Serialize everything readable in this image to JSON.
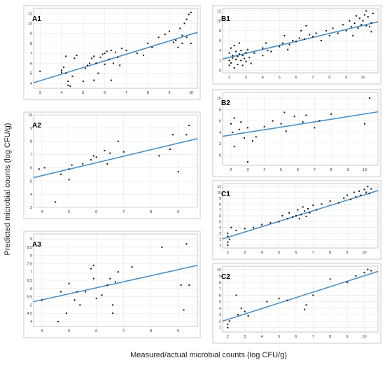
{
  "ylabel": "Predicted microbial counts (log CFU/g)",
  "xlabel": "Measured/actual microbial counts (log CFU/g)",
  "line_color": "#4a90c8",
  "point_color": "#111111",
  "frame_color": "#c8c8c8",
  "chart_data": [
    {
      "id": "A1",
      "type": "scatter",
      "title": "A1",
      "xlim": [
        2.7,
        10.3
      ],
      "ylim": [
        3.5,
        11.5
      ],
      "xticks": [
        3,
        4,
        5,
        6,
        7,
        8,
        9,
        10
      ],
      "yticks": [
        4,
        5,
        6,
        7,
        8,
        9,
        10,
        11
      ],
      "regression": [
        [
          2.7,
          4.05
        ],
        [
          10.3,
          9.1
        ]
      ],
      "points": [
        [
          3,
          5.2
        ],
        [
          4,
          5.1
        ],
        [
          4,
          5.3
        ],
        [
          4.1,
          5.6
        ],
        [
          4.2,
          6.7
        ],
        [
          4.2,
          5.0
        ],
        [
          4.3,
          4.2
        ],
        [
          4.3,
          3.8
        ],
        [
          4.4,
          3.7
        ],
        [
          4.5,
          4.7
        ],
        [
          4.6,
          6.5
        ],
        [
          4.7,
          6.8
        ],
        [
          5.0,
          4.2
        ],
        [
          5.1,
          5.5
        ],
        [
          5.2,
          5.8
        ],
        [
          5.3,
          6.0
        ],
        [
          5.4,
          6.5
        ],
        [
          5.5,
          6.7
        ],
        [
          5.5,
          4.3
        ],
        [
          5.6,
          6.0
        ],
        [
          5.7,
          5.0
        ],
        [
          5.8,
          6.6
        ],
        [
          5.9,
          6.9
        ],
        [
          6.0,
          7.0
        ],
        [
          6.0,
          5.9
        ],
        [
          6.1,
          7.2
        ],
        [
          6.2,
          6.4
        ],
        [
          6.3,
          7.3
        ],
        [
          6.3,
          4.3
        ],
        [
          6.4,
          6.0
        ],
        [
          6.5,
          7.1
        ],
        [
          6.6,
          6.6
        ],
        [
          6.7,
          5.8
        ],
        [
          6.8,
          7.5
        ],
        [
          7.0,
          7.3
        ],
        [
          7.5,
          7.0
        ],
        [
          7.8,
          6.8
        ],
        [
          8.0,
          8.0
        ],
        [
          8.2,
          7.6
        ],
        [
          8.5,
          8.6
        ],
        [
          8.8,
          8.9
        ],
        [
          9.0,
          9.2
        ],
        [
          9.3,
          8.3
        ],
        [
          9.4,
          7.6
        ],
        [
          9.5,
          9.5
        ],
        [
          9.6,
          8.0
        ],
        [
          9.7,
          10.0
        ],
        [
          9.8,
          10.4
        ],
        [
          9.8,
          8.6
        ],
        [
          9.9,
          10.9
        ],
        [
          10.0,
          11.1
        ],
        [
          10.0,
          8.0
        ],
        [
          9.6,
          8.8
        ],
        [
          9.2,
          8.1
        ]
      ]
    },
    {
      "id": "A2",
      "type": "scatter",
      "title": "A2",
      "xlim": [
        3.7,
        9.7
      ],
      "ylim": [
        3.0,
        10.0
      ],
      "xticks": [
        4,
        5,
        6,
        7,
        8,
        9
      ],
      "yticks": [
        3,
        4,
        5,
        6,
        7,
        8,
        9,
        10
      ],
      "regression": [
        [
          3.7,
          5.25
        ],
        [
          9.7,
          8.2
        ]
      ],
      "points": [
        [
          3.9,
          5.9
        ],
        [
          4.1,
          6.0
        ],
        [
          4.5,
          3.4
        ],
        [
          4.7,
          5.5
        ],
        [
          5.0,
          5.9
        ],
        [
          5.1,
          6.2
        ],
        [
          5.0,
          5.1
        ],
        [
          5.5,
          6.3
        ],
        [
          5.8,
          6.6
        ],
        [
          5.9,
          6.9
        ],
        [
          6.0,
          6.8
        ],
        [
          6.3,
          7.3
        ],
        [
          6.4,
          6.3
        ],
        [
          6.5,
          7.1
        ],
        [
          6.8,
          8.0
        ],
        [
          7.0,
          7.2
        ],
        [
          8.3,
          6.9
        ],
        [
          8.7,
          7.4
        ],
        [
          8.8,
          8.5
        ],
        [
          9.0,
          5.7
        ],
        [
          9.3,
          8.5
        ],
        [
          9.4,
          9.2
        ]
      ]
    },
    {
      "id": "A3",
      "type": "scatter",
      "title": "A3",
      "xlim": [
        3.7,
        9.7
      ],
      "ylim": [
        3.7,
        9.3
      ],
      "xticks": [
        4,
        5,
        6,
        7,
        8,
        9
      ],
      "yticks": [
        4,
        4.5,
        5,
        5.5,
        6,
        6.5,
        7,
        7.5,
        8,
        8.5,
        9
      ],
      "regression": [
        [
          3.7,
          5.2
        ],
        [
          9.7,
          7.4
        ]
      ],
      "points": [
        [
          4.0,
          5.3
        ],
        [
          4.6,
          4.0
        ],
        [
          4.7,
          5.8
        ],
        [
          4.9,
          4.5
        ],
        [
          5.0,
          6.3
        ],
        [
          5.2,
          5.3
        ],
        [
          5.3,
          5.8
        ],
        [
          5.4,
          5.0
        ],
        [
          5.6,
          5.8
        ],
        [
          5.8,
          7.2
        ],
        [
          5.9,
          6.6
        ],
        [
          5.9,
          7.4
        ],
        [
          6.0,
          5.4
        ],
        [
          6.2,
          5.6
        ],
        [
          6.4,
          6.2
        ],
        [
          6.5,
          6.6
        ],
        [
          6.6,
          5.0
        ],
        [
          6.6,
          4.5
        ],
        [
          6.7,
          6.4
        ],
        [
          6.8,
          7.0
        ],
        [
          7.3,
          7.3
        ],
        [
          8.4,
          8.5
        ],
        [
          9.1,
          6.2
        ],
        [
          9.3,
          8.7
        ],
        [
          9.4,
          6.2
        ],
        [
          9.2,
          4.7
        ]
      ]
    },
    {
      "id": "B1",
      "type": "scatter",
      "title": "B1",
      "xlim": [
        1.6,
        10.9
      ],
      "ylim": [
        -0.5,
        12.5
      ],
      "xticks": [
        2,
        3,
        4,
        5,
        6,
        7,
        8,
        9,
        10
      ],
      "yticks": [
        0,
        2,
        4,
        6,
        8,
        10,
        12
      ],
      "regression": [
        [
          1.6,
          2.3
        ],
        [
          10.9,
          9.8
        ]
      ],
      "points": [
        [
          2,
          1.0
        ],
        [
          2,
          2.0
        ],
        [
          2,
          3.5
        ],
        [
          2.1,
          4.5
        ],
        [
          2.1,
          1.5
        ],
        [
          2.2,
          2.5
        ],
        [
          2.2,
          3.0
        ],
        [
          2.3,
          5.0
        ],
        [
          2.3,
          0.5
        ],
        [
          2.4,
          2.2
        ],
        [
          2.4,
          3.8
        ],
        [
          2.5,
          2.8
        ],
        [
          2.5,
          1.2
        ],
        [
          2.6,
          3.3
        ],
        [
          2.6,
          5.5
        ],
        [
          2.7,
          2.0
        ],
        [
          2.7,
          4.0
        ],
        [
          2.8,
          1.0
        ],
        [
          2.8,
          3.0
        ],
        [
          2.9,
          2.4
        ],
        [
          3.0,
          1.8
        ],
        [
          3.0,
          3.6
        ],
        [
          3.1,
          4.2
        ],
        [
          3.2,
          2.6
        ],
        [
          3.3,
          1.4
        ],
        [
          3.5,
          3.5
        ],
        [
          4.0,
          3.0
        ],
        [
          4.0,
          4.5
        ],
        [
          4.2,
          5.5
        ],
        [
          4.3,
          4.0
        ],
        [
          4.5,
          3.8
        ],
        [
          5.0,
          4.8
        ],
        [
          5.2,
          5.5
        ],
        [
          5.3,
          7.0
        ],
        [
          5.5,
          4.2
        ],
        [
          5.6,
          5.2
        ],
        [
          5.8,
          6.0
        ],
        [
          6.0,
          5.8
        ],
        [
          6.2,
          6.5
        ],
        [
          6.3,
          8.0
        ],
        [
          6.5,
          6.3
        ],
        [
          6.6,
          9.0
        ],
        [
          6.8,
          7.2
        ],
        [
          7.0,
          6.8
        ],
        [
          7.2,
          7.5
        ],
        [
          7.5,
          6.0
        ],
        [
          7.8,
          8.0
        ],
        [
          8.0,
          7.0
        ],
        [
          8.2,
          8.5
        ],
        [
          8.5,
          7.5
        ],
        [
          8.8,
          9.2
        ],
        [
          9.0,
          8.0
        ],
        [
          9.2,
          10.0
        ],
        [
          9.3,
          8.8
        ],
        [
          9.4,
          7.0
        ],
        [
          9.5,
          9.5
        ],
        [
          9.6,
          11.0
        ],
        [
          9.7,
          8.5
        ],
        [
          9.8,
          10.5
        ],
        [
          9.9,
          9.2
        ],
        [
          10.0,
          10.0
        ],
        [
          10.1,
          11.2
        ],
        [
          10.2,
          9.0
        ],
        [
          10.3,
          10.8
        ],
        [
          10.4,
          8.8
        ],
        [
          10.5,
          9.6
        ],
        [
          10.6,
          11.5
        ],
        [
          10.5,
          7.8
        ],
        [
          10.2,
          12.0
        ]
      ]
    },
    {
      "id": "B2",
      "type": "scatter",
      "title": "B2",
      "xlim": [
        1.5,
        10.8
      ],
      "ylim": [
        -1.8,
        11.0
      ],
      "xticks": [
        2,
        3,
        4,
        5,
        6,
        7,
        8,
        9,
        10
      ],
      "yticks": [
        0,
        2,
        4,
        6,
        8,
        10
      ],
      "regression": [
        [
          1.5,
          3.3
        ],
        [
          10.8,
          7.6
        ]
      ],
      "points": [
        [
          2.0,
          5.5
        ],
        [
          2.1,
          4.0
        ],
        [
          2.2,
          6.5
        ],
        [
          2.2,
          1.5
        ],
        [
          2.5,
          4.5
        ],
        [
          2.6,
          5.8
        ],
        [
          2.8,
          3.0
        ],
        [
          3.0,
          -1.2
        ],
        [
          3.0,
          4.8
        ],
        [
          3.3,
          2.5
        ],
        [
          3.5,
          3.2
        ],
        [
          4.0,
          5.0
        ],
        [
          4.5,
          6.0
        ],
        [
          5.0,
          5.5
        ],
        [
          5.2,
          7.5
        ],
        [
          5.3,
          4.2
        ],
        [
          5.8,
          6.8
        ],
        [
          6.3,
          5.8
        ],
        [
          6.5,
          7.0
        ],
        [
          7.0,
          4.8
        ],
        [
          7.3,
          6.0
        ],
        [
          8.0,
          7.2
        ],
        [
          10.0,
          5.5
        ],
        [
          10.3,
          10.0
        ]
      ]
    },
    {
      "id": "C1",
      "type": "scatter",
      "title": "C1",
      "xlim": [
        1.7,
        10.8
      ],
      "ylim": [
        0.5,
        11.5
      ],
      "xticks": [
        2,
        3,
        4,
        5,
        6,
        7,
        8,
        9,
        10
      ],
      "yticks": [
        1,
        2,
        3,
        4,
        5,
        6,
        7,
        8,
        9,
        10,
        11
      ],
      "regression": [
        [
          1.7,
          2.05
        ],
        [
          10.8,
          10.3
        ]
      ],
      "points": [
        [
          2,
          1.0
        ],
        [
          2,
          1.5
        ],
        [
          2,
          2.5
        ],
        [
          2,
          3.0
        ],
        [
          2.1,
          2.0
        ],
        [
          2.2,
          4.0
        ],
        [
          2.5,
          3.5
        ],
        [
          3,
          3.8
        ],
        [
          3.5,
          4.0
        ],
        [
          4,
          4.5
        ],
        [
          4.5,
          4.8
        ],
        [
          5,
          5.0
        ],
        [
          5.2,
          6.0
        ],
        [
          5.5,
          5.5
        ],
        [
          5.6,
          6.5
        ],
        [
          5.8,
          5.8
        ],
        [
          6,
          6.0
        ],
        [
          6.1,
          7.0
        ],
        [
          6.2,
          5.5
        ],
        [
          6.3,
          6.2
        ],
        [
          6.4,
          7.5
        ],
        [
          6.5,
          6.8
        ],
        [
          6.6,
          5.9
        ],
        [
          6.7,
          7.2
        ],
        [
          6.8,
          6.5
        ],
        [
          7,
          7.8
        ],
        [
          7.2,
          7.0
        ],
        [
          7.5,
          8.0
        ],
        [
          8,
          8.5
        ],
        [
          8.5,
          8.2
        ],
        [
          8.8,
          9.0
        ],
        [
          9,
          9.5
        ],
        [
          9.2,
          8.8
        ],
        [
          9.4,
          10.0
        ],
        [
          9.5,
          9.2
        ],
        [
          9.7,
          10.2
        ],
        [
          9.8,
          9.5
        ],
        [
          10,
          10.5
        ],
        [
          10.1,
          10.0
        ],
        [
          10.2,
          11.0
        ],
        [
          10.3,
          9.8
        ],
        [
          10.4,
          10.6
        ]
      ]
    },
    {
      "id": "C2",
      "type": "scatter",
      "title": "C2",
      "xlim": [
        1.7,
        10.8
      ],
      "ylim": [
        0.3,
        10.5
      ],
      "xticks": [
        2,
        3,
        4,
        5,
        6,
        7,
        8,
        9,
        10
      ],
      "yticks": [
        1,
        2,
        3,
        4,
        5,
        6,
        7,
        8,
        9,
        10
      ],
      "regression": [
        [
          1.7,
          2.0
        ],
        [
          10.8,
          9.7
        ]
      ],
      "points": [
        [
          2,
          1.0
        ],
        [
          2,
          1.5
        ],
        [
          2.1,
          2.0
        ],
        [
          2.5,
          6.0
        ],
        [
          2.6,
          3.0
        ],
        [
          2.8,
          4.0
        ],
        [
          3,
          3.5
        ],
        [
          3.2,
          2.8
        ],
        [
          4.3,
          5.0
        ],
        [
          5,
          5.5
        ],
        [
          5.5,
          5.2
        ],
        [
          6.5,
          3.8
        ],
        [
          6.6,
          4.5
        ],
        [
          7.0,
          6.0
        ],
        [
          8,
          8.5
        ],
        [
          9,
          8.0
        ],
        [
          9.5,
          9.0
        ],
        [
          10,
          9.5
        ],
        [
          10.2,
          10.0
        ],
        [
          10.4,
          9.8
        ]
      ]
    }
  ]
}
